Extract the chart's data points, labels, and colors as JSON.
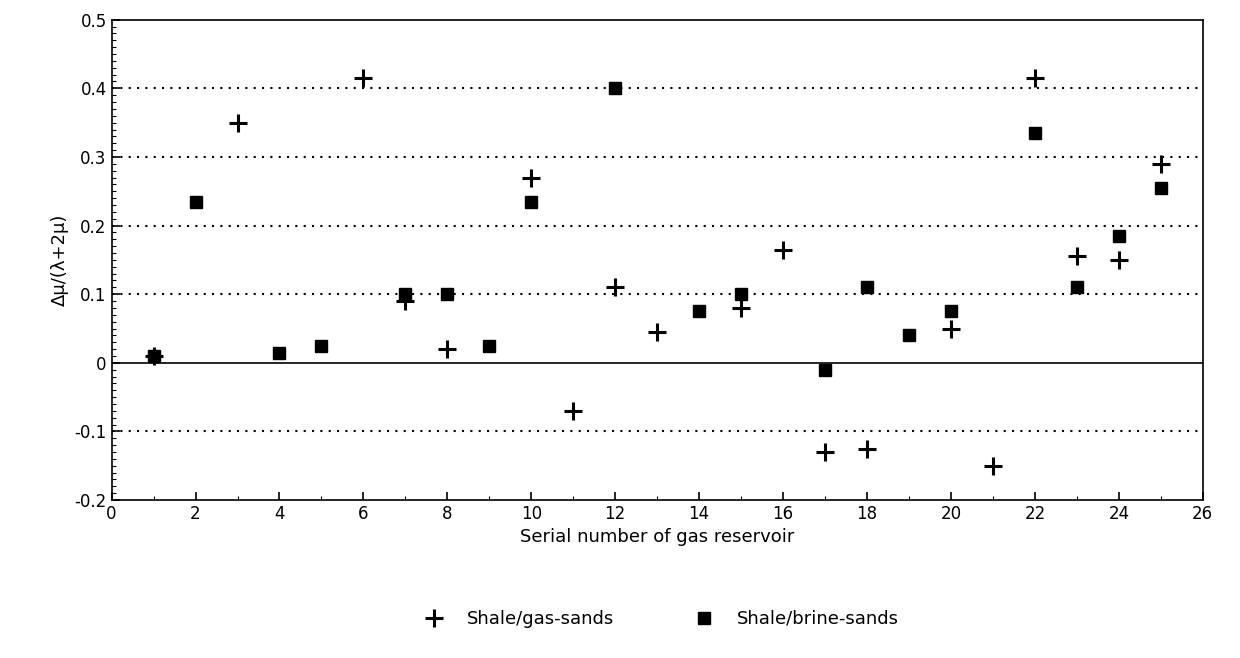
{
  "plus_x": [
    1,
    3,
    6,
    7,
    8,
    10,
    11,
    12,
    13,
    15,
    16,
    17,
    18,
    20,
    21,
    22,
    23,
    24,
    25
  ],
  "plus_y": [
    0.01,
    0.35,
    0.415,
    0.09,
    0.02,
    0.27,
    -0.07,
    0.11,
    0.045,
    0.08,
    0.165,
    -0.13,
    -0.125,
    0.05,
    -0.15,
    0.415,
    0.155,
    0.15,
    0.29
  ],
  "square_x": [
    1,
    2,
    4,
    5,
    7,
    8,
    9,
    10,
    12,
    14,
    15,
    17,
    18,
    19,
    20,
    22,
    23,
    24,
    25
  ],
  "square_y": [
    0.01,
    0.235,
    0.015,
    0.025,
    0.1,
    0.1,
    0.025,
    0.235,
    0.4,
    0.075,
    0.1,
    -0.01,
    0.11,
    0.04,
    0.075,
    0.335,
    0.11,
    0.185,
    0.255
  ],
  "xlabel": "Serial number of gas reservoir",
  "ylabel": "Δμ/(λ+2μ)",
  "xlim": [
    0,
    26
  ],
  "ylim": [
    -0.2,
    0.5
  ],
  "ytick_labels": [
    "-0.2",
    "-0.1",
    "0",
    "0.1",
    "0.2",
    "0.3",
    "0.4",
    "0.5"
  ],
  "ytick_vals": [
    -0.2,
    -0.1,
    0.0,
    0.1,
    0.2,
    0.3,
    0.4,
    0.5
  ],
  "xtick_labels": [
    "0",
    "2",
    "4",
    "6",
    "8",
    "10",
    "12",
    "14",
    "16",
    "18",
    "20",
    "22",
    "24",
    "26"
  ],
  "xtick_vals": [
    0,
    2,
    4,
    6,
    8,
    10,
    12,
    14,
    16,
    18,
    20,
    22,
    24,
    26
  ],
  "grid_y": [
    -0.1,
    0.1,
    0.2,
    0.3,
    0.4
  ],
  "legend_plus": "Shale/gas-sands",
  "legend_square": "Shale/brine-sands",
  "marker_color": "#000000",
  "background_color": "#ffffff"
}
